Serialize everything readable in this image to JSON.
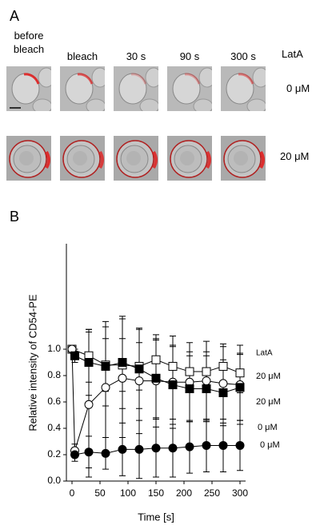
{
  "panel_a": {
    "label": "A",
    "columns": [
      "before bleach",
      "bleach",
      "30 s",
      "90 s",
      "300 s"
    ],
    "side_header": "LatA",
    "rows": [
      "0 μM",
      "20 μM"
    ]
  },
  "chart_data": {
    "type": "line",
    "panel_label": "B",
    "xlabel": "Time [s]",
    "ylabel": "Relative intensity of CD54-PE",
    "legend_title": "LatA",
    "xlim": [
      -10,
      310
    ],
    "ylim": [
      0,
      1.8
    ],
    "xticks": [
      0,
      50,
      100,
      150,
      200,
      250,
      300
    ],
    "yticks": [
      {
        "value": 0,
        "label": "0.0"
      },
      0.2,
      0.4,
      0.6,
      0.8,
      {
        "value": 1,
        "label": "1.0"
      }
    ],
    "series": [
      {
        "name": "20 μM",
        "color": "#000000",
        "marker": "square",
        "filled": false,
        "x": [
          0,
          30,
          60,
          90,
          120,
          150,
          180,
          210,
          240,
          270,
          300
        ],
        "values": [
          1.0,
          0.95,
          0.88,
          0.88,
          0.87,
          0.92,
          0.87,
          0.83,
          0.83,
          0.87,
          0.82
        ],
        "errors": [
          0,
          0.2,
          0.2,
          0.2,
          0.18,
          0.15,
          0.15,
          0.15,
          0.15,
          0.15,
          0.15
        ]
      },
      {
        "name": "20 μM",
        "color": "#000000",
        "marker": "circle",
        "filled": false,
        "x": [
          0,
          5,
          30,
          60,
          90,
          120,
          150,
          180,
          210,
          240,
          270,
          300
        ],
        "values": [
          1.0,
          0.23,
          0.58,
          0.71,
          0.78,
          0.76,
          0.76,
          0.75,
          0.75,
          0.76,
          0.74,
          0.73
        ],
        "errors": [
          0,
          0.05,
          0.55,
          0.5,
          0.45,
          0.4,
          0.35,
          0.35,
          0.3,
          0.3,
          0.3,
          0.3
        ]
      },
      {
        "name": "0 μM",
        "color": "#000000",
        "marker": "square",
        "filled": true,
        "x": [
          5,
          30,
          60,
          90,
          120,
          150,
          180,
          210,
          240,
          270,
          300
        ],
        "values": [
          0.95,
          0.9,
          0.87,
          0.9,
          0.85,
          0.78,
          0.73,
          0.7,
          0.7,
          0.67,
          0.71
        ],
        "errors": [
          0.05,
          0.25,
          0.3,
          0.35,
          0.3,
          0.3,
          0.3,
          0.25,
          0.25,
          0.25,
          0.25
        ]
      },
      {
        "name": "0 μM",
        "color": "#000000",
        "marker": "circle",
        "filled": true,
        "x": [
          5,
          30,
          60,
          90,
          120,
          150,
          180,
          210,
          240,
          270,
          300
        ],
        "values": [
          0.2,
          0.22,
          0.21,
          0.24,
          0.24,
          0.25,
          0.25,
          0.26,
          0.27,
          0.27,
          0.27
        ],
        "errors": [
          0.05,
          0.12,
          0.12,
          0.2,
          0.22,
          0.22,
          0.22,
          0.2,
          0.2,
          0.2,
          0.19
        ]
      }
    ]
  }
}
